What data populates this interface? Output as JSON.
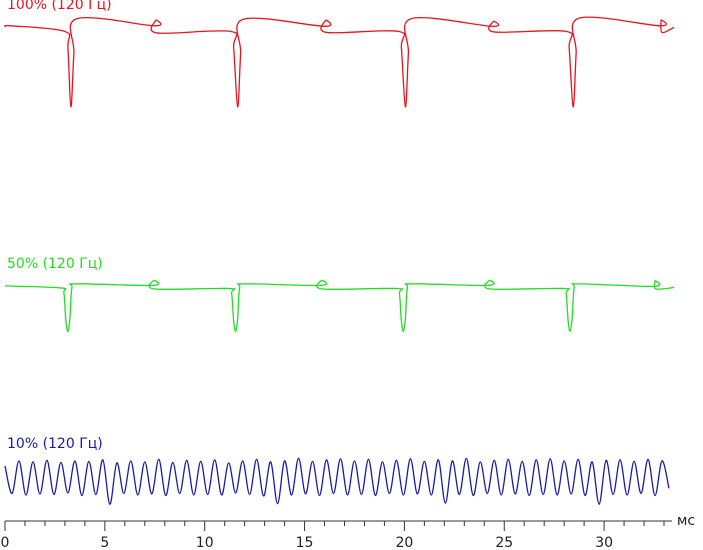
{
  "chart_data": {
    "type": "line",
    "xlabel": "мс",
    "xlim": [
      0,
      33.5
    ],
    "ylim": [
      0,
      100
    ],
    "xticks": [
      0,
      5,
      10,
      15,
      20,
      25,
      30
    ],
    "minor_xticks": [
      1,
      2,
      3,
      4,
      6,
      7,
      8,
      9,
      11,
      12,
      13,
      14,
      16,
      17,
      18,
      19,
      21,
      22,
      23,
      24,
      26,
      27,
      28,
      29,
      31,
      32,
      33
    ],
    "series": [
      {
        "name": "100% (120 Гц)",
        "color": "#e8141c",
        "x": [
          0,
          0.3,
          3.0,
          3.15,
          3.3,
          3.45,
          3.6,
          7.5,
          7.55,
          7.6,
          11.3,
          11.45,
          11.65,
          11.8,
          11.95,
          16.0,
          16.05,
          16.1,
          19.7,
          19.85,
          20.05,
          20.2,
          20.35,
          24.4,
          24.45,
          24.5,
          28.1,
          28.25,
          28.45,
          28.6,
          28.75,
          32.8,
          32.85,
          32.9,
          33.5
        ],
        "values": [
          96.7,
          96.9,
          95.8,
          92.5,
          81.0,
          91.5,
          98.3,
          96.9,
          98.0,
          95.5,
          95.8,
          92.5,
          81.0,
          91.5,
          98.2,
          96.8,
          98.0,
          95.6,
          95.8,
          92.5,
          81.0,
          91.5,
          98.3,
          96.8,
          97.8,
          95.7,
          95.8,
          92.5,
          81.0,
          91.5,
          98.4,
          96.9,
          98.0,
          95.6,
          96.6
        ]
      },
      {
        "name": "50% (120 Гц)",
        "color": "#22dd22",
        "x": [
          0,
          2.8,
          2.95,
          3.05,
          3.15,
          3.25,
          3.35,
          3.6,
          7.4,
          7.45,
          7.5,
          11.2,
          11.35,
          11.45,
          11.55,
          11.65,
          11.75,
          12.0,
          15.8,
          15.85,
          15.9,
          19.6,
          19.75,
          19.85,
          19.95,
          20.05,
          20.15,
          20.4,
          24.2,
          24.25,
          24.3,
          27.95,
          28.1,
          28.2,
          28.3,
          28.4,
          28.5,
          28.75,
          32.5,
          32.55,
          32.6,
          33.5
        ],
        "values": [
          45.9,
          45.5,
          44.5,
          39,
          37.0,
          39.5,
          45.5,
          46.3,
          46.0,
          47.0,
          45.3,
          45.4,
          44.4,
          39,
          37.0,
          39.5,
          45.5,
          46.3,
          46.0,
          47.0,
          45.3,
          45.4,
          44.4,
          39,
          37.0,
          39.5,
          45.5,
          46.3,
          46.0,
          47.0,
          45.3,
          45.4,
          44.4,
          39,
          37.0,
          39.5,
          45.5,
          46.3,
          45.8,
          46.9,
          45.3,
          45.6
        ]
      },
      {
        "name": "10% (120 Гц)",
        "color": "#1a1aaa",
        "x": [
          0,
          0.35,
          0.7,
          1.05,
          1.4,
          1.75,
          2.1,
          2.45,
          2.8,
          3.15,
          3.5,
          3.85,
          4.2,
          4.55,
          4.9,
          5.25,
          5.6,
          5.95,
          6.3,
          6.65,
          7,
          7.35,
          7.7,
          8.05,
          8.4,
          8.75,
          9.1,
          9.45,
          9.8,
          10.15,
          10.5,
          10.85,
          11.2,
          11.55,
          11.9,
          12.25,
          12.6,
          12.95,
          13.3,
          13.65,
          14,
          14.35,
          14.7,
          15.05,
          15.4,
          15.75,
          16.1,
          16.45,
          16.8,
          17.15,
          17.5,
          17.85,
          18.2,
          18.55,
          18.9,
          19.25,
          19.6,
          19.95,
          20.3,
          20.65,
          21,
          21.35,
          21.7,
          22.05,
          22.4,
          22.75,
          23.1,
          23.45,
          23.8,
          24.15,
          24.5,
          24.85,
          25.2,
          25.55,
          25.9,
          26.25,
          26.6,
          26.95,
          27.3,
          27.65,
          28,
          28.35,
          28.7,
          29.05,
          29.4,
          29.75,
          30.1,
          30.45,
          30.8,
          31.15,
          31.5,
          31.85,
          32.2,
          32.55,
          32.9,
          33.25
        ],
        "values": [
          10.6,
          5.2,
          11.6,
          4.9,
          11.4,
          5.1,
          11.7,
          5.0,
          11.3,
          5.3,
          11.6,
          4.8,
          11.5,
          5.0,
          11.8,
          3.1,
          11.2,
          5.2,
          11.6,
          4.9,
          11.4,
          5.1,
          11.9,
          4.8,
          11.3,
          5.2,
          11.7,
          4.9,
          11.5,
          5.0,
          11.8,
          4.9,
          11.2,
          5.3,
          11.6,
          5.0,
          11.9,
          4.7,
          11.4,
          3.2,
          11.6,
          4.9,
          12.1,
          5.1,
          11.5,
          4.8,
          11.8,
          5.2,
          12.0,
          4.9,
          11.6,
          5.0,
          11.9,
          4.8,
          11.4,
          5.2,
          11.7,
          4.9,
          12.0,
          5.1,
          11.5,
          4.9,
          11.8,
          3.3,
          11.6,
          5.0,
          12.1,
          4.8,
          11.4,
          5.2,
          11.7,
          4.9,
          11.9,
          5.1,
          11.5,
          4.8,
          11.8,
          5.0,
          12.0,
          4.9,
          11.6,
          5.1,
          11.9,
          4.8,
          11.4,
          3.1,
          11.7,
          5.0,
          11.8,
          4.9,
          11.5,
          5.2,
          11.9,
          4.8,
          11.6,
          6.2
        ]
      }
    ]
  }
}
